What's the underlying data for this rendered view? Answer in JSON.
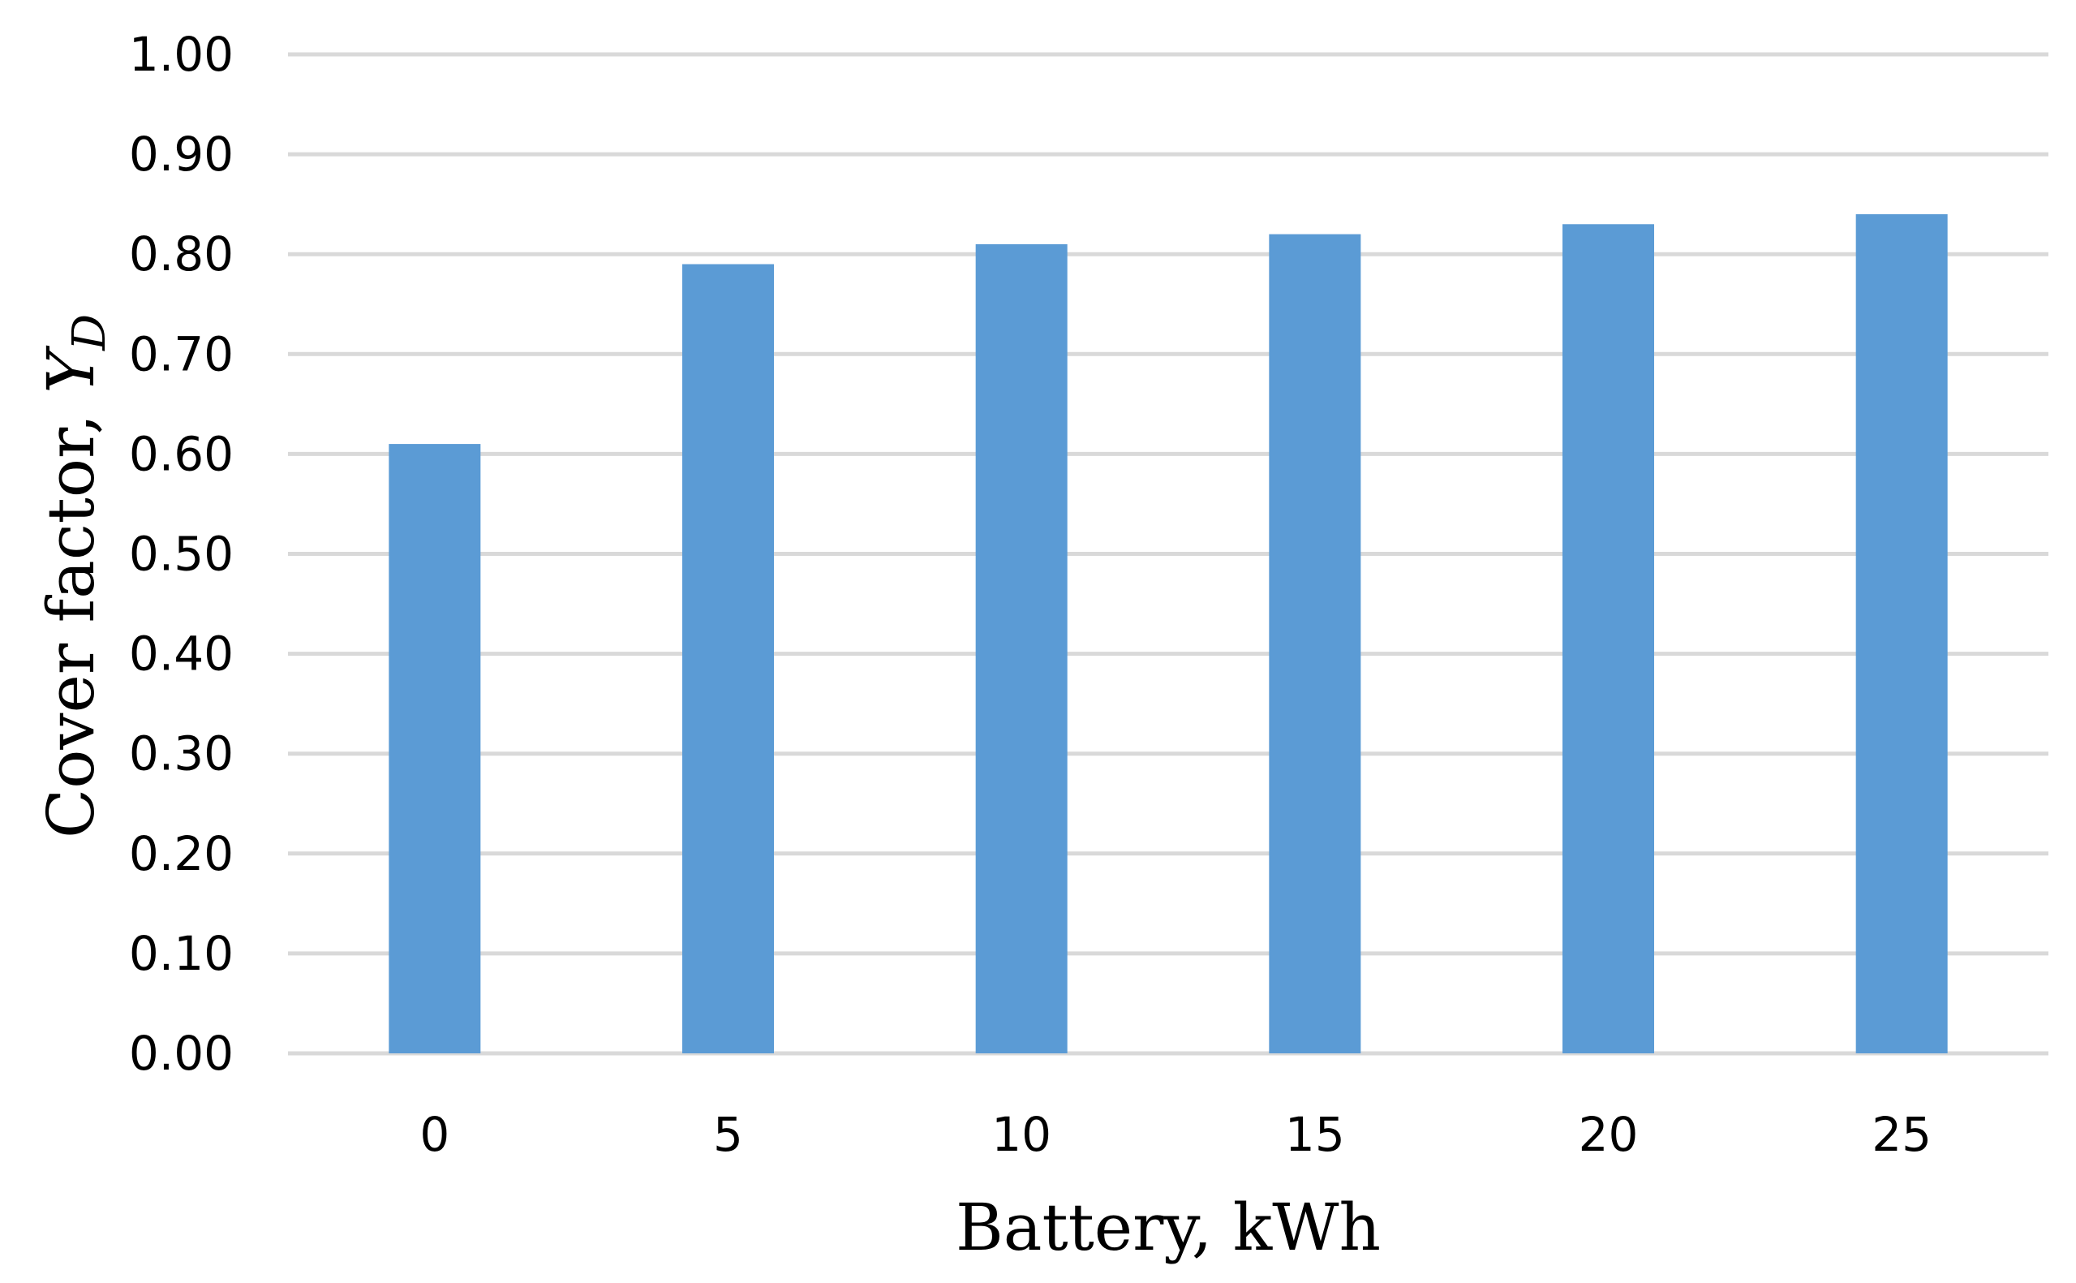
{
  "chart_data": {
    "type": "bar",
    "categories": [
      "0",
      "5",
      "10",
      "15",
      "20",
      "25"
    ],
    "values": [
      0.61,
      0.79,
      0.81,
      0.82,
      0.83,
      0.84
    ],
    "ylim": [
      0,
      1.0
    ],
    "yticks": [
      "0.00",
      "0.10",
      "0.20",
      "0.30",
      "0.40",
      "0.50",
      "0.60",
      "0.70",
      "0.80",
      "0.90",
      "1.00"
    ],
    "xlabel": "Battery, kWh",
    "ylabel": {
      "text": "Cover factor, ",
      "symbol": "Y",
      "subscript": "D"
    },
    "grid": true,
    "bar_color": "#5b9bd5",
    "gridline_color": "#d9d9d9"
  }
}
